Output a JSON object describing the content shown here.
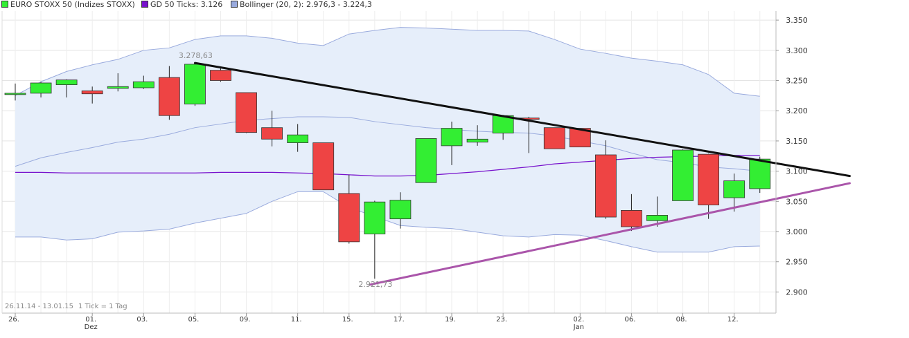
{
  "legend": {
    "items": [
      {
        "label": "EURO STOXX 50 (Indizes STOXX)",
        "color": "#33ee33"
      },
      {
        "label": "GD 50 Ticks: 3.126",
        "color": "#7711cc"
      },
      {
        "label": "Bollinger (20, 2): 2.976,3 - 3.224,3",
        "color": "#99aadd"
      }
    ]
  },
  "info": {
    "range": "26.11.14 - 13.01.15",
    "ticks": "1 Tick = 1 Tag"
  },
  "chart_data": {
    "type": "candlestick",
    "ylim": [
      2.865,
      3.365
    ],
    "y_ticks": [
      "2.900",
      "2.950",
      "3.000",
      "3.050",
      "3.100",
      "3.150",
      "3.200",
      "3.250",
      "3.300",
      "3.350"
    ],
    "y_tick_values": [
      2.9,
      2.95,
      3.0,
      3.05,
      3.1,
      3.15,
      3.2,
      3.25,
      3.3,
      3.35
    ],
    "x_day_labels": [
      {
        "i": 0,
        "label": "26."
      },
      {
        "i": 3,
        "label": "01."
      },
      {
        "i": 5,
        "label": "03."
      },
      {
        "i": 7,
        "label": "05."
      },
      {
        "i": 9,
        "label": "09."
      },
      {
        "i": 11,
        "label": "11."
      },
      {
        "i": 13,
        "label": "15."
      },
      {
        "i": 15,
        "label": "17."
      },
      {
        "i": 17,
        "label": "19."
      },
      {
        "i": 19,
        "label": "23."
      },
      {
        "i": 22,
        "label": "02."
      },
      {
        "i": 24,
        "label": "06."
      },
      {
        "i": 26,
        "label": "08."
      },
      {
        "i": 28,
        "label": "12."
      }
    ],
    "x_month_labels": [
      {
        "i": 3,
        "label": "Dez"
      },
      {
        "i": 22,
        "label": "Jan"
      }
    ],
    "candles": [
      {
        "o": 3.227,
        "h": 3.245,
        "l": 3.217,
        "c": 3.229
      },
      {
        "o": 3.229,
        "h": 3.248,
        "l": 3.222,
        "c": 3.246
      },
      {
        "o": 3.243,
        "h": 3.252,
        "l": 3.222,
        "c": 3.251
      },
      {
        "o": 3.233,
        "h": 3.24,
        "l": 3.212,
        "c": 3.228
      },
      {
        "o": 3.237,
        "h": 3.262,
        "l": 3.232,
        "c": 3.24
      },
      {
        "o": 3.238,
        "h": 3.258,
        "l": 3.236,
        "c": 3.248
      },
      {
        "o": 3.255,
        "h": 3.274,
        "l": 3.185,
        "c": 3.192
      },
      {
        "o": 3.211,
        "h": 3.279,
        "l": 3.208,
        "c": 3.277
      },
      {
        "o": 3.267,
        "h": 3.27,
        "l": 3.248,
        "c": 3.25
      },
      {
        "o": 3.23,
        "h": 3.23,
        "l": 3.163,
        "c": 3.164
      },
      {
        "o": 3.172,
        "h": 3.2,
        "l": 3.141,
        "c": 3.153
      },
      {
        "o": 3.147,
        "h": 3.178,
        "l": 3.132,
        "c": 3.16
      },
      {
        "o": 3.147,
        "h": 3.147,
        "l": 3.069,
        "c": 3.069
      },
      {
        "o": 3.063,
        "h": 3.094,
        "l": 2.98,
        "c": 2.983
      },
      {
        "o": 2.996,
        "h": 3.051,
        "l": 2.922,
        "c": 3.049
      },
      {
        "o": 3.021,
        "h": 3.065,
        "l": 3.005,
        "c": 3.052
      },
      {
        "o": 3.081,
        "h": 3.154,
        "l": 3.081,
        "c": 3.154
      },
      {
        "o": 3.142,
        "h": 3.182,
        "l": 3.11,
        "c": 3.171
      },
      {
        "o": 3.148,
        "h": 3.176,
        "l": 3.142,
        "c": 3.153
      },
      {
        "o": 3.163,
        "h": 3.193,
        "l": 3.152,
        "c": 3.192
      },
      {
        "o": 3.188,
        "h": 3.19,
        "l": 3.13,
        "c": 3.186
      },
      {
        "o": 3.172,
        "h": 3.172,
        "l": 3.137,
        "c": 3.137
      },
      {
        "o": 3.171,
        "h": 3.171,
        "l": 3.14,
        "c": 3.14
      },
      {
        "o": 3.127,
        "h": 3.151,
        "l": 3.021,
        "c": 3.024
      },
      {
        "o": 3.035,
        "h": 3.062,
        "l": 3.001,
        "c": 3.008
      },
      {
        "o": 3.018,
        "h": 3.058,
        "l": 3.008,
        "c": 3.027
      },
      {
        "o": 3.051,
        "h": 3.136,
        "l": 3.051,
        "c": 3.135
      },
      {
        "o": 3.128,
        "h": 3.129,
        "l": 3.021,
        "c": 3.044
      },
      {
        "o": 3.056,
        "h": 3.096,
        "l": 3.033,
        "c": 3.084
      },
      {
        "o": 3.071,
        "h": 3.124,
        "l": 3.064,
        "c": 3.12
      }
    ],
    "bollinger_upper": [
      3.225,
      3.248,
      3.265,
      3.276,
      3.285,
      3.3,
      3.304,
      3.318,
      3.324,
      3.324,
      3.32,
      3.312,
      3.308,
      3.327,
      3.333,
      3.338,
      3.337,
      3.335,
      3.333,
      3.333,
      3.332,
      3.318,
      3.302,
      3.295,
      3.287,
      3.282,
      3.276,
      3.26,
      3.229,
      3.224
    ],
    "bollinger_middle": [
      3.108,
      3.122,
      3.131,
      3.139,
      3.148,
      3.153,
      3.161,
      3.172,
      3.178,
      3.184,
      3.187,
      3.19,
      3.19,
      3.189,
      3.182,
      3.177,
      3.172,
      3.169,
      3.166,
      3.164,
      3.163,
      3.158,
      3.15,
      3.142,
      3.13,
      3.119,
      3.114,
      3.107,
      3.104,
      3.1
    ],
    "bollinger_lower": [
      2.991,
      2.991,
      2.986,
      2.988,
      2.999,
      3.001,
      3.004,
      3.014,
      3.022,
      3.03,
      3.05,
      3.066,
      3.066,
      3.04,
      3.025,
      3.01,
      3.007,
      3.005,
      2.999,
      2.993,
      2.991,
      2.995,
      2.994,
      2.985,
      2.975,
      2.966,
      2.966,
      2.966,
      2.975,
      2.976
    ],
    "gd50": [
      3.098,
      3.098,
      3.097,
      3.097,
      3.097,
      3.097,
      3.097,
      3.097,
      3.098,
      3.098,
      3.098,
      3.097,
      3.096,
      3.094,
      3.092,
      3.092,
      3.093,
      3.096,
      3.099,
      3.103,
      3.107,
      3.112,
      3.115,
      3.118,
      3.121,
      3.123,
      3.124,
      3.125,
      3.126,
      3.126
    ],
    "trendlines": [
      {
        "name": "resistance",
        "color": "#111111",
        "from": {
          "i": 7,
          "v": 3.279
        },
        "to": {
          "i": 32.5,
          "v": 3.092
        }
      },
      {
        "name": "support",
        "color": "#aa55aa",
        "from": {
          "i": 13.8,
          "v": 2.912
        },
        "to": {
          "i": 32.5,
          "v": 3.08
        }
      }
    ],
    "annotations": [
      {
        "text": "3.278,63",
        "i": 7,
        "v": 3.279
      },
      {
        "text": "2.921,73",
        "i": 14,
        "v": 2.922
      }
    ],
    "colors": {
      "up": "#33ee33",
      "down": "#ee4444",
      "band_fill": "#e6eefa",
      "band_line": "#99aadd",
      "gd": "#7711cc"
    }
  }
}
